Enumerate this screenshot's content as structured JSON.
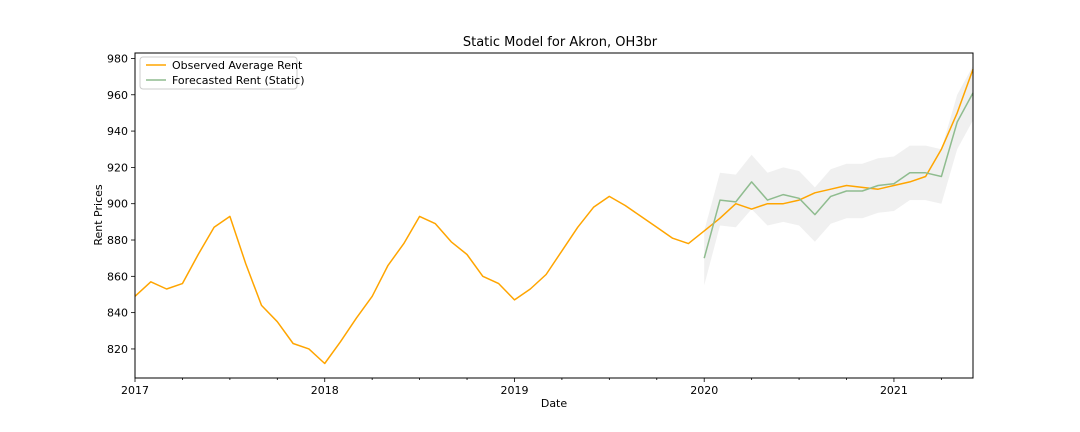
{
  "chart_data": {
    "type": "line",
    "title": "Static Model for Akron, OH3br",
    "xlabel": "Date",
    "ylabel": "Rent Prices",
    "xlim": [
      "2017-01",
      "2021-06"
    ],
    "ylim": [
      804,
      983
    ],
    "x_ticks": [
      "2017",
      "2018",
      "2019",
      "2020",
      "2021"
    ],
    "y_ticks": [
      820,
      840,
      860,
      880,
      900,
      920,
      940,
      960,
      980
    ],
    "grid": false,
    "legend_position": "upper-left",
    "series": [
      {
        "name": "Observed Average Rent",
        "color": "#FFA500",
        "x": [
          "2017-01",
          "2017-02",
          "2017-03",
          "2017-04",
          "2017-05",
          "2017-06",
          "2017-07",
          "2017-08",
          "2017-09",
          "2017-10",
          "2017-11",
          "2017-12",
          "2018-01",
          "2018-02",
          "2018-03",
          "2018-04",
          "2018-05",
          "2018-06",
          "2018-07",
          "2018-08",
          "2018-09",
          "2018-10",
          "2018-11",
          "2018-12",
          "2019-01",
          "2019-02",
          "2019-03",
          "2019-04",
          "2019-05",
          "2019-06",
          "2019-07",
          "2019-08",
          "2019-09",
          "2019-10",
          "2019-11",
          "2019-12",
          "2020-01",
          "2020-02",
          "2020-03",
          "2020-04",
          "2020-05",
          "2020-06",
          "2020-07",
          "2020-08",
          "2020-09",
          "2020-10",
          "2020-11",
          "2020-12",
          "2021-01",
          "2021-02",
          "2021-03",
          "2021-04",
          "2021-05",
          "2021-06"
        ],
        "values": [
          849,
          857,
          853,
          856,
          872,
          887,
          893,
          867,
          844,
          835,
          823,
          820,
          812,
          824,
          837,
          849,
          866,
          878,
          893,
          889,
          879,
          872,
          860,
          856,
          847,
          853,
          861,
          874,
          887,
          898,
          904,
          899,
          893,
          887,
          881,
          878,
          885,
          892,
          900,
          897,
          900,
          900,
          902,
          906,
          908,
          910,
          909,
          908,
          910,
          912,
          915,
          930,
          950,
          974
        ]
      },
      {
        "name": "Forecasted Rent (Static)",
        "color": "#8FBC8F",
        "x": [
          "2020-01",
          "2020-02",
          "2020-03",
          "2020-04",
          "2020-05",
          "2020-06",
          "2020-07",
          "2020-08",
          "2020-09",
          "2020-10",
          "2020-11",
          "2020-12",
          "2021-01",
          "2021-02",
          "2021-03",
          "2021-04",
          "2021-05",
          "2021-06"
        ],
        "values": [
          870,
          902,
          901,
          912,
          902,
          905,
          903,
          894,
          904,
          907,
          907,
          910,
          911,
          917,
          917,
          915,
          945,
          961
        ],
        "lower": [
          855,
          888,
          887,
          897,
          888,
          890,
          888,
          879,
          889,
          892,
          892,
          895,
          896,
          902,
          902,
          900,
          930,
          946
        ],
        "upper": [
          885,
          917,
          916,
          927,
          917,
          920,
          918,
          909,
          919,
          922,
          922,
          925,
          926,
          932,
          932,
          930,
          960,
          976
        ]
      }
    ]
  }
}
